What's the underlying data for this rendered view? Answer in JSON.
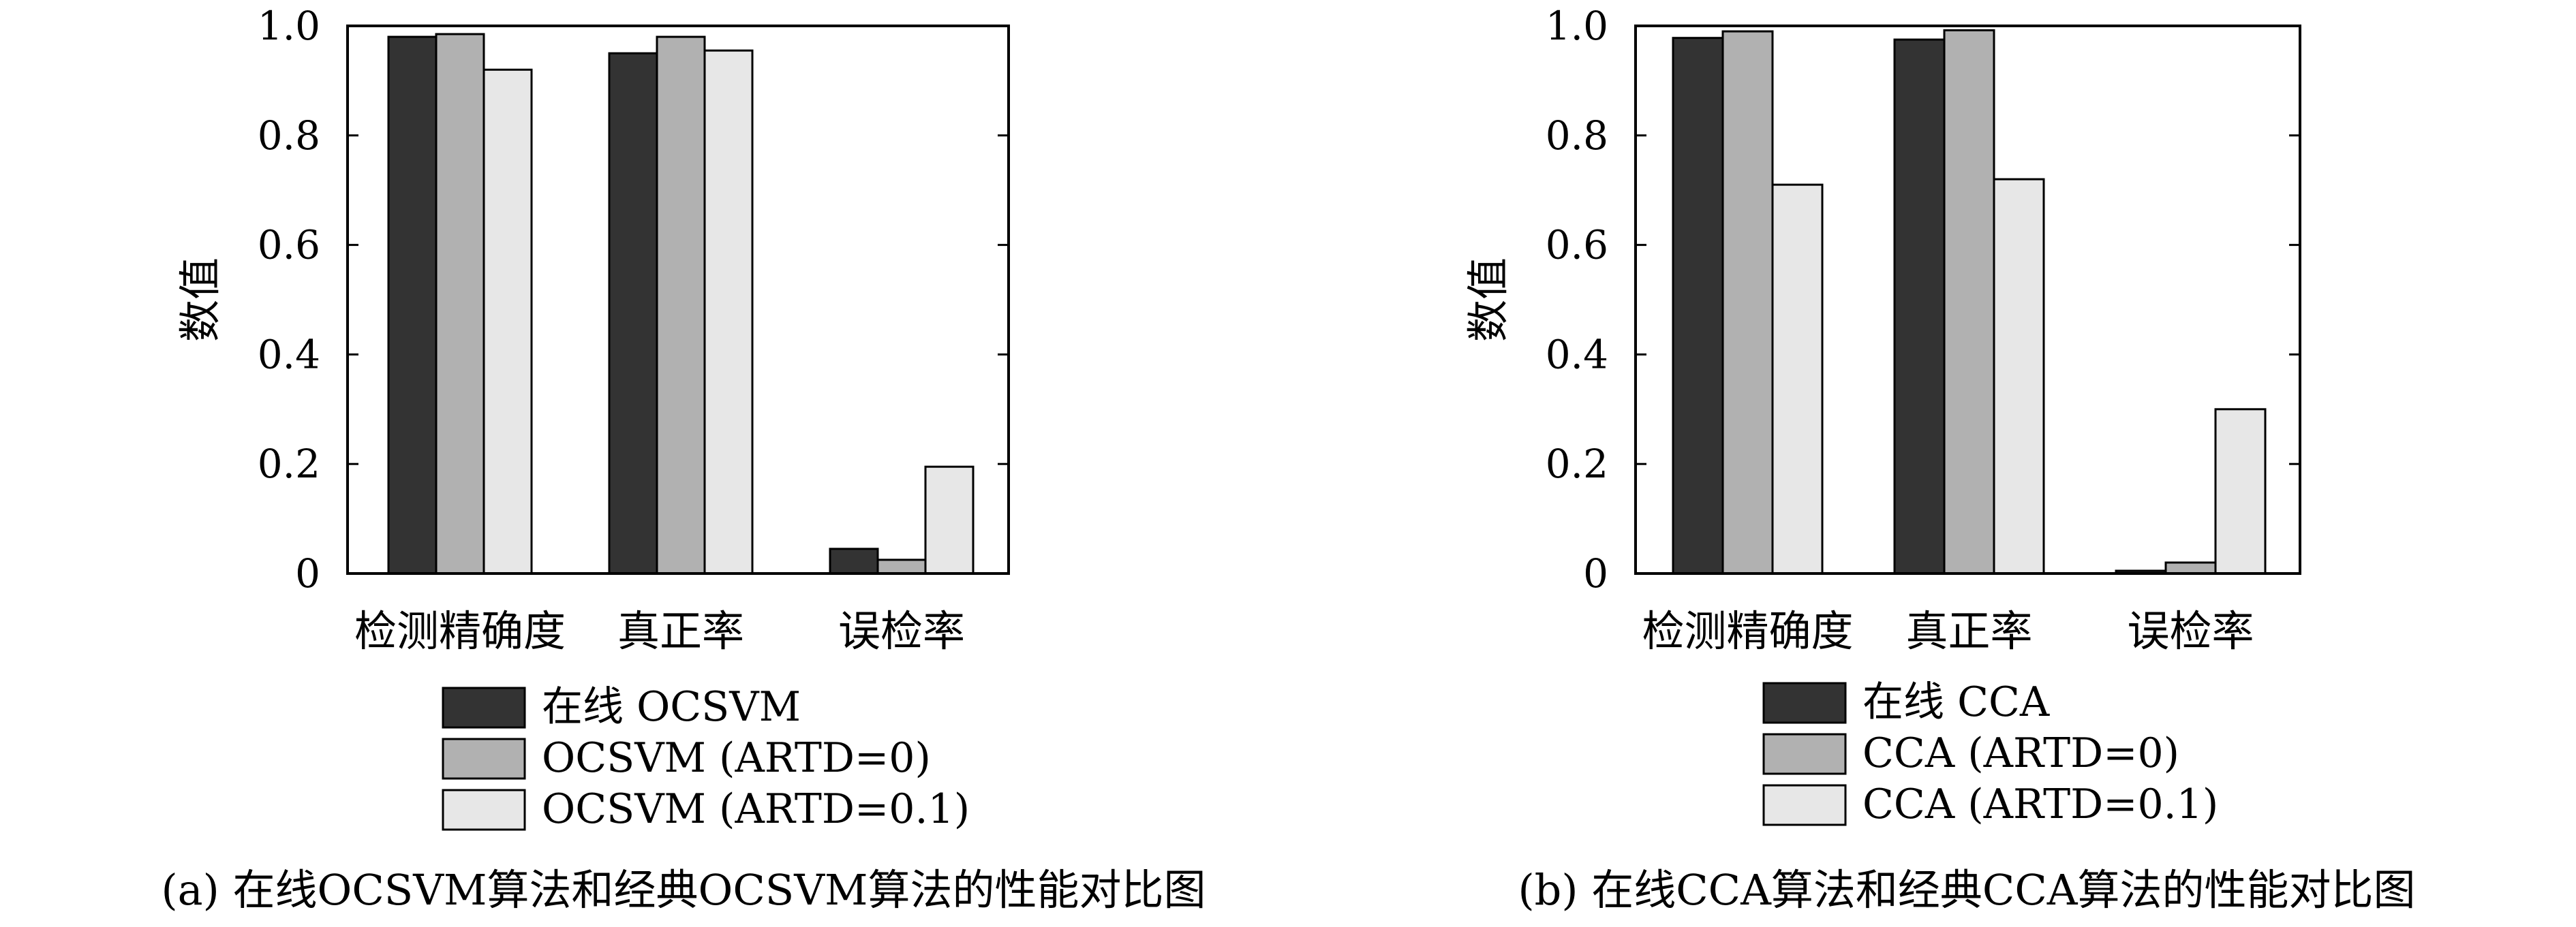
{
  "colors": {
    "series_1": "#333333",
    "series_2": "#b1b1b1",
    "series_3": "#e7e7e7",
    "axis": "#000000"
  },
  "chart_data": [
    {
      "type": "bar",
      "caption": "(a) 在线OCSVM算法和经典OCSVM算法的性能对比图",
      "ylabel": "数值",
      "ylim": [
        0,
        1.0
      ],
      "yticks": [
        "0",
        "0.2",
        "0.4",
        "0.6",
        "0.8",
        "1.0"
      ],
      "grid": false,
      "legend_position": "bottom",
      "categories": [
        "检测精确度",
        "真正率",
        "误检率"
      ],
      "series": [
        {
          "name": "在线 OCSVM",
          "values": [
            0.98,
            0.95,
            0.045
          ]
        },
        {
          "name": "OCSVM (ARTD=0)",
          "values": [
            0.985,
            0.98,
            0.025
          ]
        },
        {
          "name": "OCSVM (ARTD=0.1)",
          "values": [
            0.92,
            0.955,
            0.195
          ]
        }
      ]
    },
    {
      "type": "bar",
      "caption": "(b) 在线CCA算法和经典CCA算法的性能对比图",
      "ylabel": "数值",
      "ylim": [
        0,
        1.0
      ],
      "yticks": [
        "0",
        "0.2",
        "0.4",
        "0.6",
        "0.8",
        "1.0"
      ],
      "grid": false,
      "legend_position": "bottom",
      "categories": [
        "检测精确度",
        "真正率",
        "误检率"
      ],
      "series": [
        {
          "name": "在线 CCA",
          "values": [
            0.978,
            0.975,
            0.005
          ]
        },
        {
          "name": "CCA (ARTD=0)",
          "values": [
            0.99,
            0.992,
            0.02
          ]
        },
        {
          "name": "CCA (ARTD=0.1)",
          "values": [
            0.71,
            0.72,
            0.3
          ]
        }
      ]
    }
  ]
}
